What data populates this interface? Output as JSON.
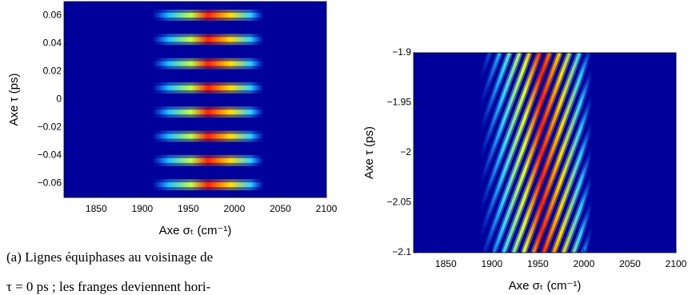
{
  "chart_data": [
    {
      "type": "heatmap",
      "xlabel": "Axe σₜ (cm⁻¹)",
      "ylabel": "Axe τ (ps)",
      "xlim": [
        1815,
        2100
      ],
      "xticks": [
        1850,
        1900,
        1950,
        2000,
        2050,
        2100
      ],
      "ylim": [
        -0.07,
        0.07
      ],
      "yticks": [
        0.06,
        0.04,
        0.02,
        0,
        {
          "value": -0.02,
          "label": "−0.02"
        },
        {
          "value": -0.04,
          "label": "−0.04"
        },
        {
          "value": -0.06,
          "label": "−0.06"
        }
      ],
      "caption": [
        "(a) Lignes équiphases au voisinage de",
        "τ = 0 ps ; les franges deviennent hori-"
      ]
    },
    {
      "type": "heatmap",
      "xlabel": "Axe σₜ (cm⁻¹)",
      "ylabel": "Axe τ (ps)",
      "xlim": [
        1815,
        2100
      ],
      "xticks": [
        1850,
        1900,
        1950,
        2000,
        2050,
        2100
      ],
      "ylim": [
        -2.1,
        -1.9
      ],
      "yticks": [
        {
          "value": -1.9,
          "label": "−1.9"
        },
        {
          "value": -1.95,
          "label": "−1.95"
        },
        {
          "value": -2,
          "label": "−2"
        },
        {
          "value": -2.05,
          "label": "−2.05"
        },
        {
          "value": -2.1,
          "label": "−2.1"
        }
      ]
    }
  ]
}
